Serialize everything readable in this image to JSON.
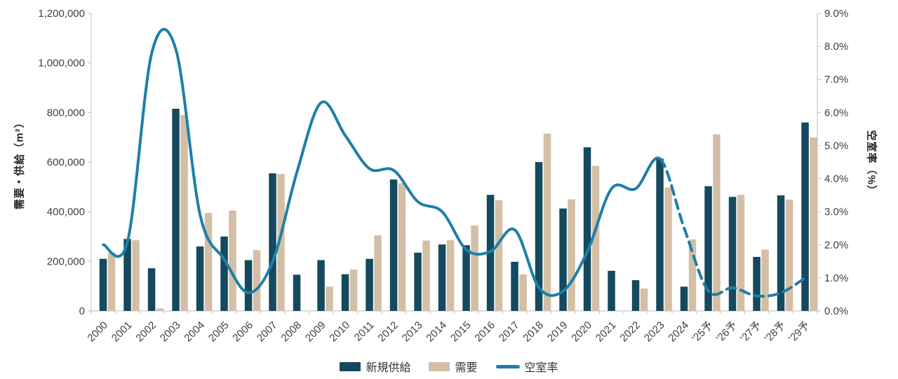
{
  "chart_data": {
    "type": "bar+line",
    "title": "",
    "categories": [
      "2000",
      "2001",
      "2002",
      "2003",
      "2004",
      "2005",
      "2006",
      "2007",
      "2008",
      "2009",
      "2010",
      "2011",
      "2012",
      "2013",
      "2014",
      "2015",
      "2016",
      "2017",
      "2018",
      "2019",
      "2020",
      "2021",
      "2022",
      "2023",
      "2024",
      "'25予",
      "'26予",
      "'27予",
      "'28予",
      "'29予"
    ],
    "series": [
      {
        "name": "新規供給",
        "type": "bar",
        "axis": "left",
        "color": "#15495e",
        "values": [
          210000,
          290000,
          172000,
          815000,
          260000,
          300000,
          205000,
          555000,
          146000,
          205000,
          148000,
          210000,
          530000,
          235000,
          268000,
          265000,
          468000,
          198000,
          600000,
          413000,
          660000,
          162000,
          124000,
          614000,
          98000,
          503000,
          460000,
          218000,
          466000,
          760000
        ]
      },
      {
        "name": "需要",
        "type": "bar",
        "axis": "left",
        "color": "#d3bfa6",
        "values": [
          235000,
          285000,
          10000,
          790000,
          395000,
          405000,
          245000,
          552000,
          0,
          98000,
          167000,
          305000,
          515000,
          284000,
          285000,
          345000,
          446000,
          147000,
          715000,
          450000,
          585000,
          0,
          90000,
          498000,
          288000,
          712000,
          468000,
          247000,
          449000,
          700000
        ]
      },
      {
        "name": "空室率",
        "type": "line",
        "axis": "right",
        "unit": "%",
        "color": "#1e7fa7",
        "values": [
          2.0,
          2.1,
          7.8,
          7.9,
          2.9,
          1.55,
          0.55,
          1.5,
          4.2,
          6.3,
          5.3,
          4.3,
          4.25,
          3.3,
          3.0,
          1.85,
          1.8,
          2.45,
          0.7,
          0.6,
          1.8,
          3.7,
          3.7,
          4.6,
          2.5,
          0.6,
          0.7,
          0.45,
          0.55,
          1.0
        ]
      }
    ],
    "forecast_start_index": 24,
    "left_axis": {
      "label": "需要・供給（m²）",
      "min": 0,
      "max": 1200000,
      "step": 200000,
      "tick_labels": [
        "0",
        "200,000",
        "400,000",
        "600,000",
        "800,000",
        "1,000,000",
        "1,200,000"
      ]
    },
    "right_axis": {
      "label": "空室率（%）",
      "min": 0,
      "max": 9,
      "step": 1,
      "tick_labels": [
        "0.0%",
        "1.0%",
        "2.0%",
        "3.0%",
        "4.0%",
        "5.0%",
        "6.0%",
        "7.0%",
        "8.0%",
        "9.0%"
      ]
    },
    "legend": {
      "position": "bottom",
      "items": [
        "新規供給",
        "需要",
        "空室率"
      ]
    },
    "grid": "off",
    "axis_color": "#bfbfbf",
    "text_color": "#404040"
  }
}
